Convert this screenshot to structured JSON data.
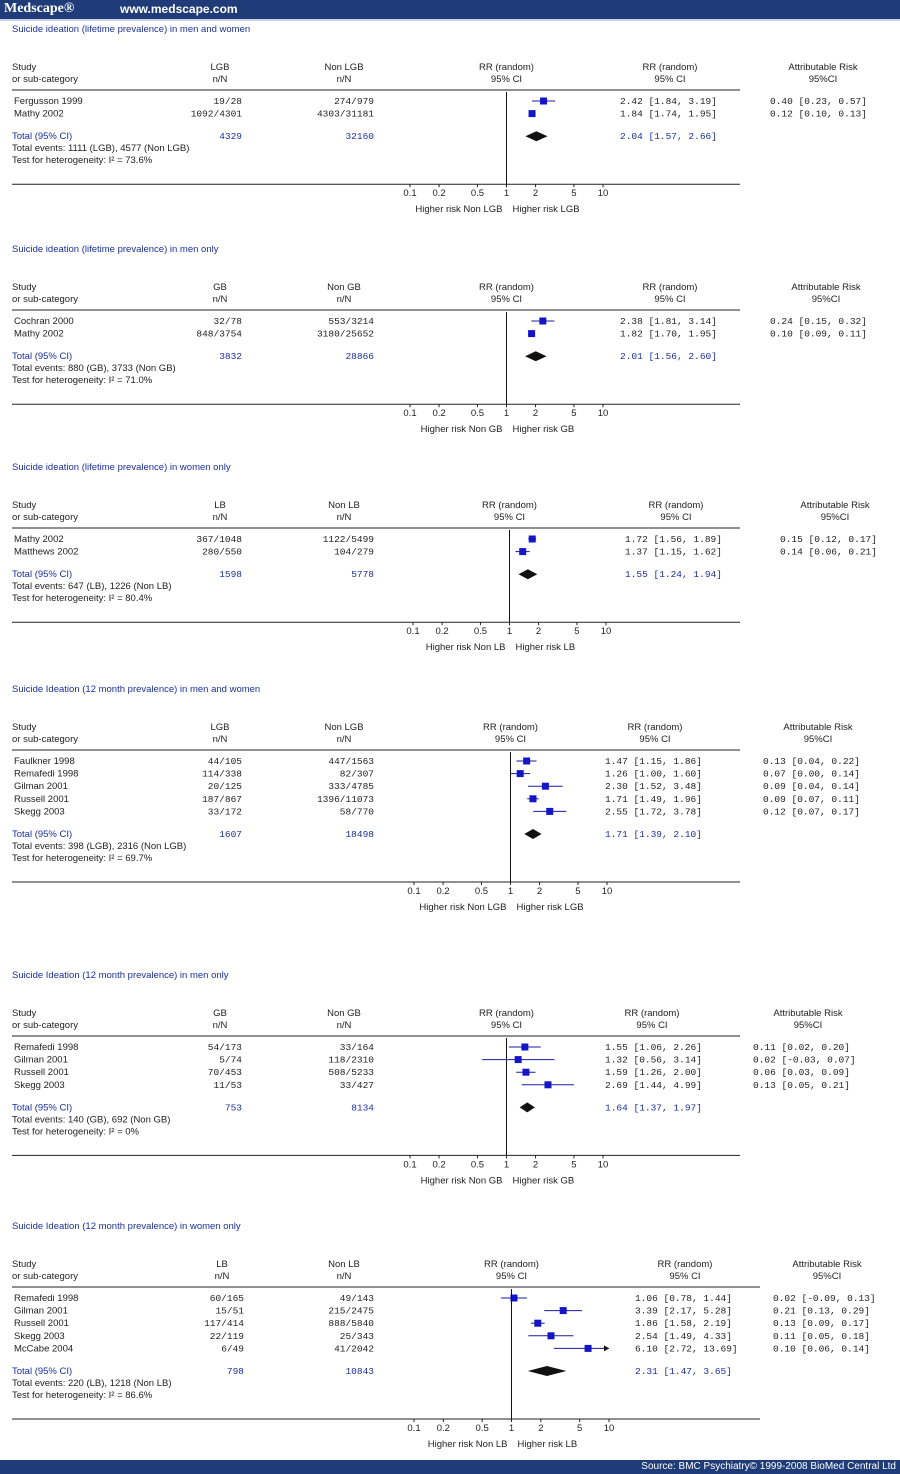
{
  "header": {
    "brand": "Medscape®",
    "url": "www.medscape.com"
  },
  "footer": {
    "source": "Source: BMC Psychiatry© 1999-2008 BioMed Central Ltd"
  },
  "chart_data": [
    {
      "type": "forest",
      "title": "Suicide ideation (lifetime prevalence) in men and women",
      "columns": {
        "study": "Study",
        "subcat": "or sub-category",
        "g1": "LGB",
        "g2": "Non LGB",
        "nn": "n/N",
        "rr": "RR (random)",
        "ci": "95% CI",
        "ar": "Attributable Risk",
        "arci": "95%CI"
      },
      "studies": [
        {
          "name": "Fergusson 1999",
          "g1": "19/28",
          "g2": "274/979",
          "rr": 2.42,
          "lo": 1.84,
          "hi": 3.19,
          "rr_text": "2.42 [1.84, 3.19]",
          "ar_text": "0.40 [0.23, 0.57]"
        },
        {
          "name": "Mathy 2002",
          "g1": "1092/4301",
          "g2": "4303/31181",
          "rr": 1.84,
          "lo": 1.74,
          "hi": 1.95,
          "rr_text": "1.84 [1.74, 1.95]",
          "ar_text": "0.12 [0.10, 0.13]"
        }
      ],
      "total": {
        "label": "Total (95% CI)",
        "n1": "4329",
        "n2": "32160",
        "rr": 2.04,
        "lo": 1.57,
        "hi": 2.66,
        "rr_text": "2.04 [1.57, 2.66]"
      },
      "events": "Total events: 1111 (LGB), 4577 (Non LGB)",
      "heterogeneity": "Test for heterogeneity:   I² = 73.6%",
      "ticks": [
        "0.1",
        "0.2",
        "0.5",
        "1",
        "2",
        "5",
        "10"
      ],
      "favours_left": "Higher risk Non LGB",
      "favours_right": "Higher risk LGB"
    },
    {
      "type": "forest",
      "title": "Suicide ideation (lifetime prevalence) in men only",
      "columns": {
        "study": "Study",
        "subcat": "or sub-category",
        "g1": "GB",
        "g2": "Non GB",
        "nn": "n/N",
        "rr": "RR (random)",
        "ci": "95% CI",
        "ar": "Attributable Risk",
        "arci": "95%CI"
      },
      "studies": [
        {
          "name": "Cochran 2000",
          "g1": "32/78",
          "g2": "553/3214",
          "rr": 2.38,
          "lo": 1.81,
          "hi": 3.14,
          "rr_text": "2.38 [1.81, 3.14]",
          "ar_text": "0.24 [0.15, 0.32]"
        },
        {
          "name": "Mathy 2002",
          "g1": "848/3754",
          "g2": "3180/25652",
          "rr": 1.82,
          "lo": 1.7,
          "hi": 1.95,
          "rr_text": "1.82 [1.70, 1.95]",
          "ar_text": "0.10 [0.09, 0.11]"
        }
      ],
      "total": {
        "label": "Total (95% CI)",
        "n1": "3832",
        "n2": "28866",
        "rr": 2.01,
        "lo": 1.56,
        "hi": 2.6,
        "rr_text": "2.01 [1.56, 2.60]"
      },
      "events": "Total events: 880 (GB), 3733 (Non GB)",
      "heterogeneity": "Test for heterogeneity:   I² = 71.0%",
      "ticks": [
        "0.1",
        "0.2",
        "0.5",
        "1",
        "2",
        "5",
        "10"
      ],
      "favours_left": "Higher risk Non GB",
      "favours_right": "Higher risk GB"
    },
    {
      "type": "forest",
      "title": "Suicide ideation (lifetime prevalence) in women only",
      "columns": {
        "study": "Study",
        "subcat": "or sub-category",
        "g1": "LB",
        "g2": "Non LB",
        "nn": "n/N",
        "rr": "RR (random)",
        "ci": "95% CI",
        "ar": "Attributable Risk",
        "arci": "95%CI"
      },
      "studies": [
        {
          "name": "Mathy 2002",
          "g1": "367/1048",
          "g2": "1122/5499",
          "rr": 1.72,
          "lo": 1.56,
          "hi": 1.89,
          "rr_text": "1.72 [1.56, 1.89]",
          "ar_text": "0.15 [0.12, 0.17]"
        },
        {
          "name": "Matthews 2002",
          "g1": "280/550",
          "g2": "104/279",
          "rr": 1.37,
          "lo": 1.15,
          "hi": 1.62,
          "rr_text": "1.37 [1.15, 1.62]",
          "ar_text": "0.14 [0.06, 0.21]"
        }
      ],
      "total": {
        "label": "Total (95% CI)",
        "n1": "1598",
        "n2": "5778",
        "rr": 1.55,
        "lo": 1.24,
        "hi": 1.94,
        "rr_text": "1.55 [1.24, 1.94]"
      },
      "events": "Total events: 647 (LB), 1226 (Non LB)",
      "heterogeneity": "Test for heterogeneity:   I² = 80.4%",
      "ticks": [
        "0.1",
        "0.2",
        "0.5",
        "1",
        "2",
        "5",
        "10"
      ],
      "favours_left": "Higher risk Non LB",
      "favours_right": "Higher risk LB"
    },
    {
      "type": "forest",
      "title": "Suicide Ideation (12 month prevalence) in men and women",
      "columns": {
        "study": "Study",
        "subcat": "or sub-category",
        "g1": "LGB",
        "g2": "Non LGB",
        "nn": "n/N",
        "rr": "RR (random)",
        "ci": "95% CI",
        "ar": "Attributable Risk",
        "arci": "95%CI"
      },
      "studies": [
        {
          "name": "Faulkner 1998",
          "g1": "44/105",
          "g2": "447/1563",
          "rr": 1.47,
          "lo": 1.15,
          "hi": 1.86,
          "rr_text": "1.47 [1.15, 1.86]",
          "ar_text": "0.13 [0.04, 0.22]"
        },
        {
          "name": "Remafedi 1998",
          "g1": "114/338",
          "g2": "82/307",
          "rr": 1.26,
          "lo": 1.0,
          "hi": 1.6,
          "rr_text": "1.26 [1.00, 1.60]",
          "ar_text": "0.07 [0.00, 0.14]"
        },
        {
          "name": "Gilman 2001",
          "g1": "20/125",
          "g2": "333/4785",
          "rr": 2.3,
          "lo": 1.52,
          "hi": 3.48,
          "rr_text": "2.30 [1.52, 3.48]",
          "ar_text": "0.09 [0.04, 0.14]"
        },
        {
          "name": "Russell 2001",
          "g1": "187/867",
          "g2": "1396/11073",
          "rr": 1.71,
          "lo": 1.49,
          "hi": 1.96,
          "rr_text": "1.71 [1.49, 1.96]",
          "ar_text": "0.09 [0.07, 0.11]"
        },
        {
          "name": "Skegg 2003",
          "g1": "33/172",
          "g2": "58/770",
          "rr": 2.55,
          "lo": 1.72,
          "hi": 3.78,
          "rr_text": "2.55 [1.72, 3.78]",
          "ar_text": "0.12 [0.07, 0.17]"
        }
      ],
      "total": {
        "label": "Total (95% CI)",
        "n1": "1607",
        "n2": "18498",
        "rr": 1.71,
        "lo": 1.39,
        "hi": 2.1,
        "rr_text": "1.71 [1.39, 2.10]"
      },
      "events": "Total events: 398 (LGB), 2316 (Non LGB)",
      "heterogeneity": "Test for heterogeneity:   I² = 69.7%",
      "ticks": [
        "0.1",
        "0.2",
        "0.5",
        "1",
        "2",
        "5",
        "10"
      ],
      "favours_left": "Higher risk Non LGB",
      "favours_right": "Higher risk LGB"
    },
    {
      "type": "forest",
      "title": "Suicide Ideation (12 month prevalence) in men only",
      "columns": {
        "study": "Study",
        "subcat": "or sub-category",
        "g1": "GB",
        "g2": "Non GB",
        "nn": "n/N",
        "rr": "RR (random)",
        "ci": "95% CI",
        "ar": "Attributable Risk",
        "arci": "95%CI"
      },
      "studies": [
        {
          "name": "Remafedi 1998",
          "g1": "54/173",
          "g2": "33/164",
          "rr": 1.55,
          "lo": 1.06,
          "hi": 2.26,
          "rr_text": "1.55 [1.06, 2.26]",
          "ar_text": "0.11 [0.02, 0.20]"
        },
        {
          "name": "Gilman 2001",
          "g1": "5/74",
          "g2": "118/2310",
          "rr": 1.32,
          "lo": 0.56,
          "hi": 3.14,
          "rr_text": "1.32 [0.56, 3.14]",
          "ar_text": "0.02 [-0.03, 0.07]"
        },
        {
          "name": "Russell 2001",
          "g1": "70/453",
          "g2": "508/5233",
          "rr": 1.59,
          "lo": 1.26,
          "hi": 2.0,
          "rr_text": "1.59 [1.26, 2.00]",
          "ar_text": "0.06 [0.03, 0.09]"
        },
        {
          "name": "Skegg 2003",
          "g1": "11/53",
          "g2": "33/427",
          "rr": 2.69,
          "lo": 1.44,
          "hi": 4.99,
          "rr_text": "2.69 [1.44, 4.99]",
          "ar_text": "0.13 [0.05, 0.21]"
        }
      ],
      "total": {
        "label": "Total (95% CI)",
        "n1": "753",
        "n2": "8134",
        "rr": 1.64,
        "lo": 1.37,
        "hi": 1.97,
        "rr_text": "1.64 [1.37, 1.97]"
      },
      "events": "Total events: 140 (GB), 692 (Non GB)",
      "heterogeneity": "Test for heterogeneity:   I² = 0%",
      "ticks": [
        "0.1",
        "0.2",
        "0.5",
        "1",
        "2",
        "5",
        "10"
      ],
      "favours_left": "Higher risk Non GB",
      "favours_right": "Higher risk GB"
    },
    {
      "type": "forest",
      "title": "Suicide Ideation (12 month prevalence) in women only",
      "columns": {
        "study": "Study",
        "subcat": "or sub-category",
        "g1": "LB",
        "g2": "Non LB",
        "nn": "n/N",
        "rr": "RR (random)",
        "ci": "95% CI",
        "ar": "Attributable Risk",
        "arci": "95%CI"
      },
      "studies": [
        {
          "name": "Remafedi 1998",
          "g1": "60/165",
          "g2": "49/143",
          "rr": 1.06,
          "lo": 0.78,
          "hi": 1.44,
          "rr_text": "1.06 [0.78, 1.44]",
          "ar_text": "0.02 [-0.09, 0.13]"
        },
        {
          "name": "Gilman 2001",
          "g1": "15/51",
          "g2": "215/2475",
          "rr": 3.39,
          "lo": 2.17,
          "hi": 5.28,
          "rr_text": "3.39 [2.17, 5.28]",
          "ar_text": "0.21 [0.13, 0.29]"
        },
        {
          "name": "Russell 2001",
          "g1": "117/414",
          "g2": "888/5840",
          "rr": 1.86,
          "lo": 1.58,
          "hi": 2.19,
          "rr_text": "1.86 [1.58, 2.19]",
          "ar_text": "0.13 [0.09, 0.17]"
        },
        {
          "name": "Skegg 2003",
          "g1": "22/119",
          "g2": "25/343",
          "rr": 2.54,
          "lo": 1.49,
          "hi": 4.33,
          "rr_text": "2.54 [1.49, 4.33]",
          "ar_text": "0.11 [0.05, 0.18]"
        },
        {
          "name": "McCabe 2004",
          "g1": "6/49",
          "g2": "41/2042",
          "rr": 6.1,
          "lo": 2.72,
          "hi": 13.69,
          "rr_text": "6.10 [2.72, 13.69]",
          "ar_text": "0.10 [0.06, 0.14]"
        }
      ],
      "total": {
        "label": "Total (95% CI)",
        "n1": "798",
        "n2": "10843",
        "rr": 2.31,
        "lo": 1.47,
        "hi": 3.65,
        "rr_text": "2.31 [1.47, 3.65]"
      },
      "events": "Total events: 220 (LB), 1218 (Non LB)",
      "heterogeneity": "Test for heterogeneity:   I² = 86.6%",
      "ticks": [
        "0.1",
        "0.2",
        "0.5",
        "1",
        "2",
        "5",
        "10"
      ],
      "favours_left": "Higher risk Non LB",
      "favours_right": "Higher risk LB"
    }
  ]
}
